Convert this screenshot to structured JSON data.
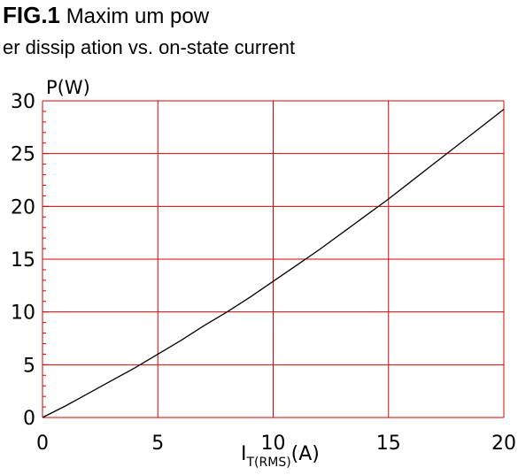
{
  "caption": {
    "figure_label": "FIG.1",
    "line1": "Maxim um pow",
    "line2": "er dissip ation vs. on-state current"
  },
  "chart_data": {
    "type": "line",
    "title": "",
    "xlabel": "I",
    "xlabel_subscript": "T(RMS)",
    "xlabel_unit": "(A)",
    "ylabel": "P(W)",
    "xlim": [
      0,
      20
    ],
    "ylim": [
      0,
      30
    ],
    "x_ticks": [
      0,
      5,
      10,
      15,
      20
    ],
    "y_ticks": [
      0,
      5,
      10,
      15,
      20,
      25,
      30
    ],
    "x_tick_labels": [
      "0",
      "5",
      "10",
      "15",
      "20"
    ],
    "y_tick_labels": [
      "0",
      "5",
      "10",
      "15",
      "20",
      "25",
      "30"
    ],
    "grid": true,
    "grid_color": "#dd0000",
    "line_color": "#000000",
    "series": [
      {
        "x": [
          0,
          1,
          2,
          3,
          4,
          5,
          6,
          7,
          8,
          9,
          10,
          11,
          12,
          13,
          14,
          15,
          16,
          17,
          18,
          19,
          20
        ],
        "y": [
          0,
          1.1,
          2.3,
          3.5,
          4.7,
          6.0,
          7.3,
          8.7,
          10.0,
          11.4,
          12.9,
          14.4,
          15.9,
          17.5,
          19.1,
          20.7,
          22.4,
          24.1,
          25.8,
          27.5,
          29.2
        ]
      }
    ]
  }
}
